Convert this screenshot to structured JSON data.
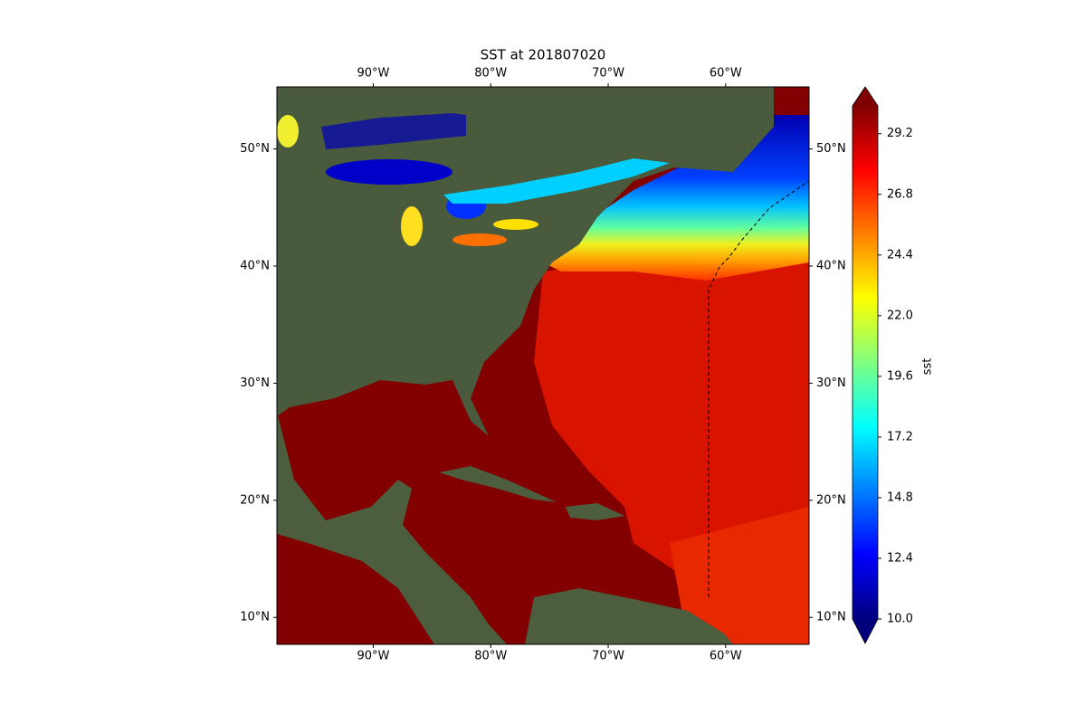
{
  "chart_data": {
    "type": "map",
    "title": "SST at 201807020",
    "xlim": [
      -98.2,
      -52.9
    ],
    "ylim": [
      7.7,
      55.3
    ],
    "xticks": [
      {
        "value": -90,
        "label": "90°W"
      },
      {
        "value": -80,
        "label": "80°W"
      },
      {
        "value": -70,
        "label": "70°W"
      },
      {
        "value": -60,
        "label": "60°W"
      }
    ],
    "yticks": [
      {
        "value": 10,
        "label": "10°N"
      },
      {
        "value": 20,
        "label": "20°N"
      },
      {
        "value": 30,
        "label": "30°N"
      },
      {
        "value": 40,
        "label": "40°N"
      },
      {
        "value": 50,
        "label": "50°N"
      }
    ],
    "colorbar": {
      "label": "sst",
      "clim": [
        10,
        30.3
      ],
      "colormap": "jet",
      "ticks": [
        {
          "value": 10,
          "label": "10.0"
        },
        {
          "value": 12.4,
          "label": "12.4"
        },
        {
          "value": 14.8,
          "label": "14.8"
        },
        {
          "value": 17.2,
          "label": "17.2"
        },
        {
          "value": 19.6,
          "label": "19.6"
        },
        {
          "value": 22,
          "label": "22.0"
        },
        {
          "value": 24.4,
          "label": "24.4"
        },
        {
          "value": 26.8,
          "label": "26.8"
        },
        {
          "value": 29.2,
          "label": "29.2"
        }
      ]
    }
  }
}
